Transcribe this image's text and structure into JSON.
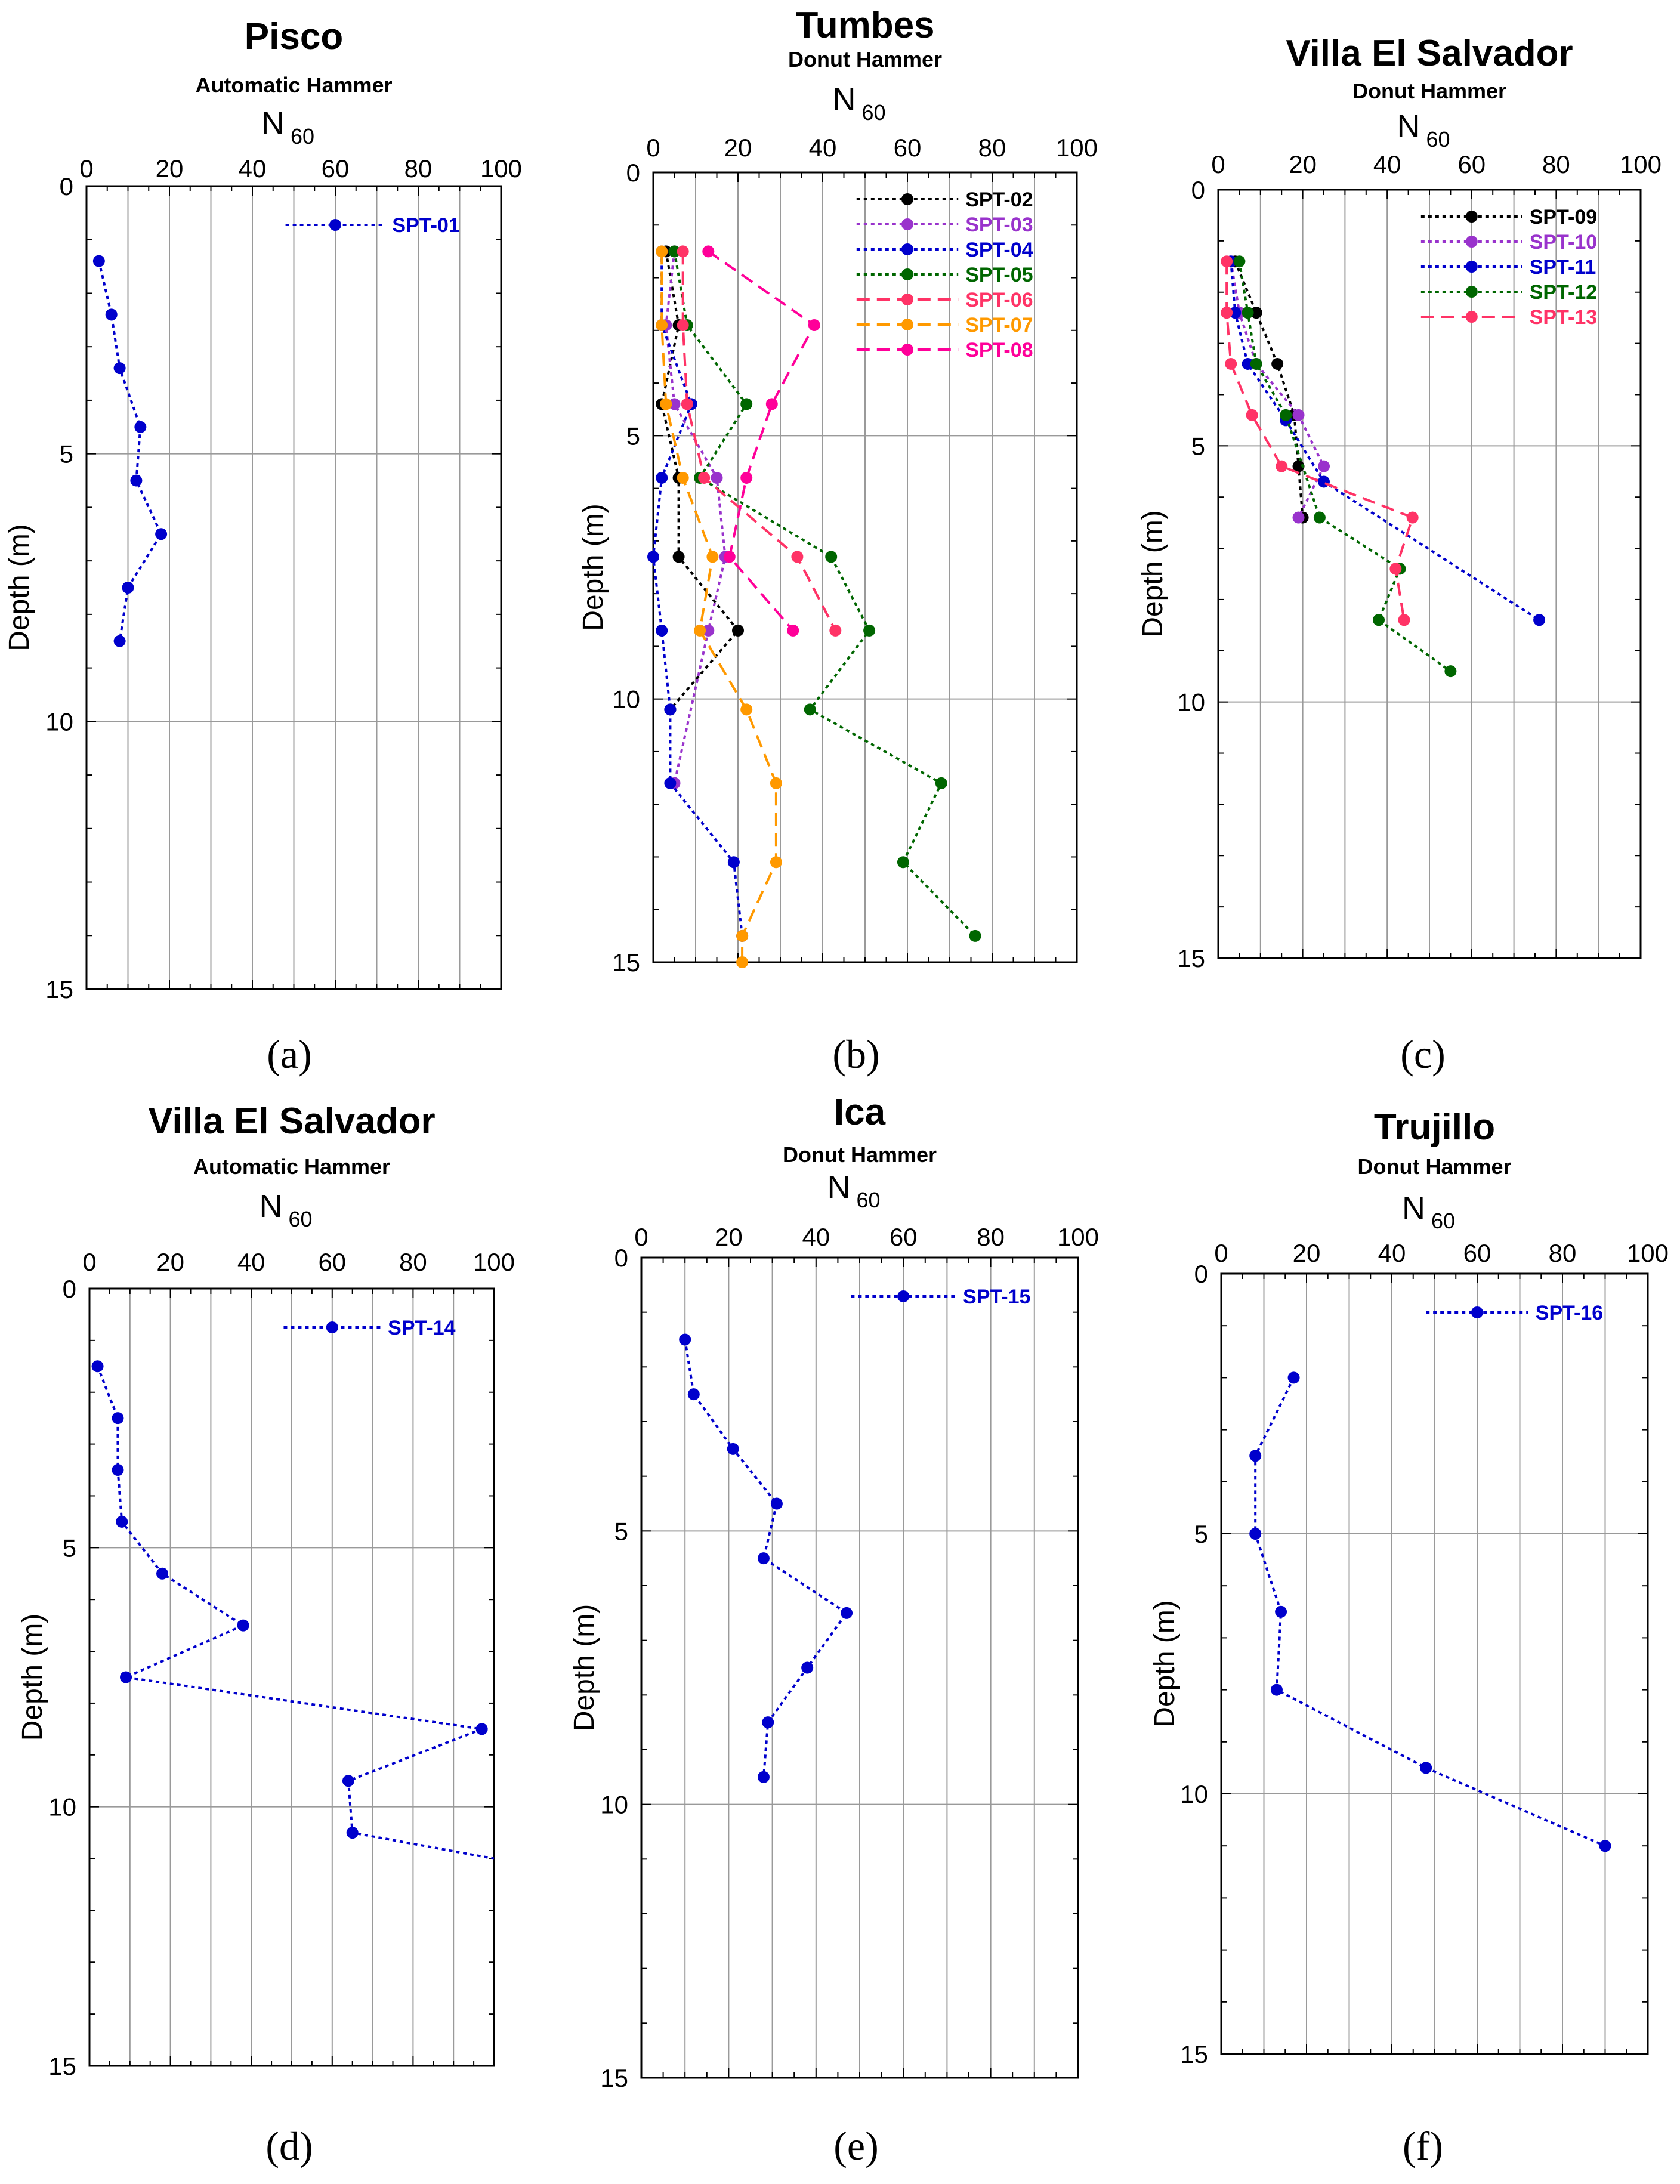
{
  "chart_data": [
    {
      "type": "line",
      "panel_label": "(a)",
      "title": "Pisco",
      "subtitle": "Automatic Hammer",
      "xlabel_main": "N",
      "xlabel_sub": "60",
      "ylabel": "Depth (m)",
      "xlim": [
        0,
        100
      ],
      "ylim": [
        0,
        15
      ],
      "y_inverted": true,
      "x_ticks": [
        "0",
        "20",
        "40",
        "60",
        "80",
        "100"
      ],
      "y_ticks": [
        "0",
        "5",
        "10",
        "15"
      ],
      "legend_position": "top-right",
      "series": [
        {
          "name": "SPT-01",
          "color": "#0000cc",
          "dash": "dotted",
          "x": [
            3,
            6,
            8,
            13,
            12,
            18,
            10,
            8
          ],
          "y": [
            1.4,
            2.4,
            3.4,
            4.5,
            5.5,
            6.5,
            7.5,
            8.5
          ]
        }
      ]
    },
    {
      "type": "line",
      "panel_label": "(b)",
      "title": "Tumbes",
      "subtitle": "Donut Hammer",
      "xlabel_main": "N",
      "xlabel_sub": "60",
      "ylabel": "Depth (m)",
      "xlim": [
        0,
        100
      ],
      "ylim": [
        0,
        15
      ],
      "y_inverted": true,
      "x_ticks": [
        "0",
        "20",
        "40",
        "60",
        "80",
        "100"
      ],
      "y_ticks": [
        "0",
        "5",
        "10",
        "15"
      ],
      "legend_position": "top-right",
      "series": [
        {
          "name": "SPT-02",
          "color": "#000000",
          "dash": "dotted",
          "x": [
            3,
            6,
            2,
            6,
            6,
            20,
            4
          ],
          "y": [
            1.5,
            2.9,
            4.4,
            5.8,
            7.3,
            8.7,
            10.2
          ]
        },
        {
          "name": "SPT-03",
          "color": "#9933cc",
          "dash": "dotted",
          "x": [
            5,
            3,
            5,
            15,
            17,
            13,
            5
          ],
          "y": [
            1.5,
            2.9,
            4.4,
            5.8,
            7.3,
            8.7,
            11.6
          ]
        },
        {
          "name": "SPT-04",
          "color": "#0000cc",
          "dash": "dotted",
          "x": [
            2,
            2,
            9,
            2,
            0,
            2,
            4,
            4,
            19,
            21
          ],
          "y": [
            1.5,
            2.9,
            4.4,
            5.8,
            7.3,
            8.7,
            10.2,
            11.6,
            13.1,
            14.5
          ]
        },
        {
          "name": "SPT-05",
          "color": "#006600",
          "dash": "dotted",
          "x": [
            5,
            8,
            22,
            11,
            42,
            51,
            37,
            68,
            59,
            76
          ],
          "y": [
            1.5,
            2.9,
            4.4,
            5.8,
            7.3,
            8.7,
            10.2,
            11.6,
            13.1,
            14.5
          ]
        },
        {
          "name": "SPT-06",
          "color": "#ff3366",
          "dash": "dashed",
          "x": [
            7,
            7,
            8,
            12,
            34,
            43
          ],
          "y": [
            1.5,
            2.9,
            4.4,
            5.8,
            7.3,
            8.7
          ]
        },
        {
          "name": "SPT-07",
          "color": "#ff9900",
          "dash": "dashed",
          "x": [
            2,
            2,
            3,
            7,
            14,
            11,
            22,
            29,
            29,
            21,
            21
          ],
          "y": [
            1.5,
            2.9,
            4.4,
            5.8,
            7.3,
            8.7,
            10.2,
            11.6,
            13.1,
            14.5,
            15
          ]
        },
        {
          "name": "SPT-08",
          "color": "#ff0099",
          "dash": "dashed",
          "x": [
            13,
            38,
            28,
            22,
            18,
            33
          ],
          "y": [
            1.5,
            2.9,
            4.4,
            5.8,
            7.3,
            8.7
          ]
        }
      ]
    },
    {
      "type": "line",
      "panel_label": "(c)",
      "title": "Villa El Salvador",
      "subtitle": "Donut Hammer",
      "xlabel_main": "N",
      "xlabel_sub": "60",
      "ylabel": "Depth (m)",
      "xlim": [
        0,
        100
      ],
      "ylim": [
        0,
        15
      ],
      "y_inverted": true,
      "x_ticks": [
        "0",
        "20",
        "40",
        "60",
        "80",
        "100"
      ],
      "y_ticks": [
        "0",
        "5",
        "10",
        "15"
      ],
      "legend_position": "top-right",
      "series": [
        {
          "name": "SPT-09",
          "color": "#000000",
          "dash": "dotted",
          "x": [
            4,
            9,
            14,
            18,
            19,
            20
          ],
          "y": [
            1.4,
            2.4,
            3.4,
            4.4,
            5.4,
            6.4
          ]
        },
        {
          "name": "SPT-10",
          "color": "#9933cc",
          "dash": "dotted",
          "x": [
            3,
            5,
            9,
            19,
            25,
            19
          ],
          "y": [
            1.4,
            2.4,
            3.4,
            4.4,
            5.4,
            6.4
          ]
        },
        {
          "name": "SPT-11",
          "color": "#0000cc",
          "dash": "dotted",
          "x": [
            3,
            4,
            7,
            16,
            25,
            76
          ],
          "y": [
            1.4,
            2.4,
            3.4,
            4.5,
            5.7,
            8.4
          ]
        },
        {
          "name": "SPT-12",
          "color": "#006600",
          "dash": "dotted",
          "x": [
            5,
            7,
            9,
            16,
            24,
            43,
            38,
            55
          ],
          "y": [
            1.4,
            2.4,
            3.4,
            4.4,
            6.4,
            7.4,
            8.4,
            9.4
          ]
        },
        {
          "name": "SPT-13",
          "color": "#ff3366",
          "dash": "dashed",
          "x": [
            2,
            2,
            3,
            8,
            15,
            46,
            42,
            44
          ],
          "y": [
            1.4,
            2.4,
            3.4,
            4.4,
            5.4,
            6.4,
            7.4,
            8.4
          ]
        }
      ]
    },
    {
      "type": "line",
      "panel_label": "(d)",
      "title": "Villa El Salvador",
      "subtitle": "Automatic Hammer",
      "xlabel_main": "N",
      "xlabel_sub": "60",
      "ylabel": "Depth (m)",
      "xlim": [
        0,
        100
      ],
      "ylim": [
        0,
        15
      ],
      "y_inverted": true,
      "x_ticks": [
        "0",
        "20",
        "40",
        "60",
        "80",
        "100"
      ],
      "y_ticks": [
        "0",
        "5",
        "10",
        "15"
      ],
      "legend_position": "top-right",
      "series": [
        {
          "name": "SPT-14",
          "color": "#0000cc",
          "dash": "dotted",
          "x": [
            2,
            7,
            7,
            8,
            18,
            38,
            9,
            97,
            64,
            65,
            100
          ],
          "y": [
            1.5,
            2.5,
            3.5,
            4.5,
            5.5,
            6.5,
            7.5,
            8.5,
            9.5,
            10.5,
            11
          ]
        }
      ]
    },
    {
      "type": "line",
      "panel_label": "(e)",
      "title": "Ica",
      "subtitle": "Donut Hammer",
      "xlabel_main": "N",
      "xlabel_sub": "60",
      "ylabel": "Depth (m)",
      "xlim": [
        0,
        100
      ],
      "ylim": [
        0,
        15
      ],
      "y_inverted": true,
      "x_ticks": [
        "0",
        "20",
        "40",
        "60",
        "80",
        "100"
      ],
      "y_ticks": [
        "0",
        "5",
        "10",
        "15"
      ],
      "legend_position": "top-right",
      "series": [
        {
          "name": "SPT-15",
          "color": "#0000cc",
          "dash": "dotted",
          "x": [
            10,
            12,
            21,
            31,
            28,
            47,
            38,
            29,
            28
          ],
          "y": [
            1.5,
            2.5,
            3.5,
            4.5,
            5.5,
            6.5,
            7.5,
            8.5,
            9.5
          ]
        }
      ]
    },
    {
      "type": "line",
      "panel_label": "(f)",
      "title": "Trujillo",
      "subtitle": "Donut Hammer",
      "xlabel_main": "N",
      "xlabel_sub": "60",
      "ylabel": "Depth (m)",
      "xlim": [
        0,
        100
      ],
      "ylim": [
        0,
        15
      ],
      "y_inverted": true,
      "x_ticks": [
        "0",
        "20",
        "40",
        "60",
        "80",
        "100"
      ],
      "y_ticks": [
        "0",
        "5",
        "10",
        "15"
      ],
      "legend_position": "top-right",
      "series": [
        {
          "name": "SPT-16",
          "color": "#0000cc",
          "dash": "dotted",
          "x": [
            17,
            8,
            8,
            14,
            13,
            48,
            90
          ],
          "y": [
            2,
            3.5,
            5,
            6.5,
            8,
            9.5,
            11
          ]
        }
      ]
    }
  ]
}
